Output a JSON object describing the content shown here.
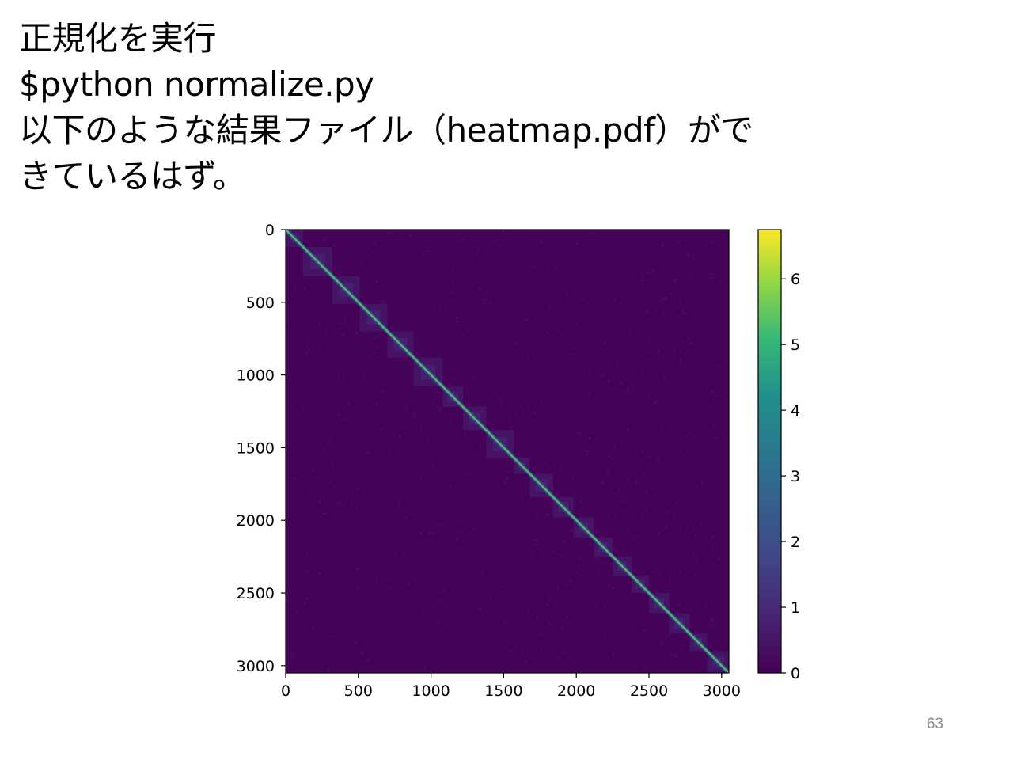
{
  "slide": {
    "lines": [
      "正規化を実行",
      "$python normalize.py",
      "以下のような結果ファイル（heatmap.pdf）がで",
      "きているはず。"
    ],
    "page_number": "63"
  },
  "chart_data": {
    "type": "heatmap",
    "title": "",
    "xlabel": "",
    "ylabel": "",
    "matrix_size": 3050,
    "xlim": [
      0,
      3050
    ],
    "ylim": [
      3050,
      0
    ],
    "x_ticks": [
      0,
      500,
      1000,
      1500,
      2000,
      2500,
      3000
    ],
    "y_ticks": [
      0,
      500,
      1000,
      1500,
      2000,
      2500,
      3000
    ],
    "x_tick_labels": [
      "0",
      "500",
      "1000",
      "1500",
      "2000",
      "2500",
      "3000"
    ],
    "y_tick_labels": [
      "0",
      "500",
      "1000",
      "1500",
      "2000",
      "2500",
      "3000"
    ],
    "colormap": "viridis",
    "colorbar": {
      "range": [
        0,
        6.75
      ],
      "ticks": [
        0,
        1,
        2,
        3,
        4,
        5,
        6
      ],
      "tick_labels": [
        "0",
        "1",
        "2",
        "3",
        "4",
        "5",
        "6"
      ]
    },
    "diagonal_value": 5.5,
    "background_value": 0.05,
    "domain_boundaries": [
      0,
      120,
      320,
      510,
      700,
      880,
      1080,
      1220,
      1380,
      1570,
      1680,
      1840,
      1980,
      2120,
      2250,
      2380,
      2500,
      2640,
      2780,
      2900,
      3050
    ],
    "colors": {
      "viridis_low": "#440154",
      "viridis_high": "#fde725"
    }
  }
}
